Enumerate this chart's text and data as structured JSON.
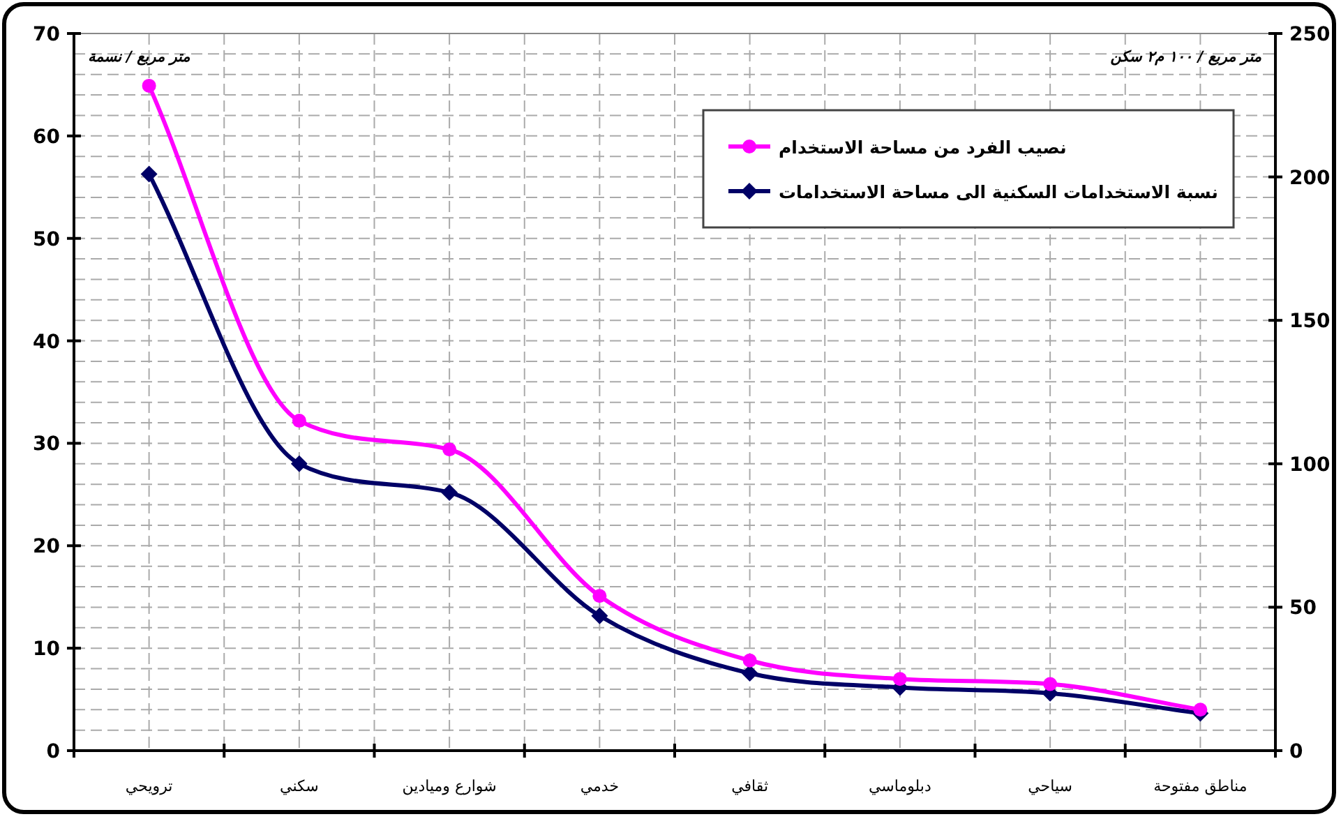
{
  "chart_data": {
    "type": "line",
    "categories": [
      "ترويحي",
      "سكني",
      "شوارع وميادين",
      "خدمي",
      "ثقافي",
      "دبلوماسي",
      "سياحي",
      "مناطق مفتوحة"
    ],
    "series": [
      {
        "name": "نصيب الفرد من مساحة الاستخدام",
        "color": "#ff00ff",
        "marker": "circle",
        "values": [
          64.9,
          32.2,
          29.4,
          15.1,
          8.8,
          7.0,
          6.5,
          4.0
        ]
      },
      {
        "name": "نسبة الاستخدامات السكنية الى مساحة الاستخدامات",
        "color": "#000066",
        "marker": "diamond",
        "axis": "y2",
        "values": [
          201,
          100,
          90,
          47,
          27,
          22,
          20,
          13
        ]
      }
    ],
    "ylabel": "متر مربع / نسمة",
    "y2label": "متر مربع / ١٠٠ م٢ سكن",
    "ylim": [
      0,
      70
    ],
    "yticks": [
      0,
      {
        "value": 2,
        "label": null
      },
      {
        "value": 4,
        "label": null
      },
      {
        "value": 6,
        "label": null
      },
      {
        "value": 8,
        "label": null
      },
      10,
      {
        "value": 12,
        "label": null
      },
      {
        "value": 14,
        "label": null
      },
      {
        "value": 16,
        "label": null
      },
      {
        "value": 18,
        "label": null
      },
      20,
      {
        "value": 22,
        "label": null
      },
      {
        "value": 24,
        "label": null
      },
      {
        "value": 26,
        "label": null
      },
      {
        "value": 28,
        "label": null
      },
      30,
      {
        "value": 32,
        "label": null
      },
      {
        "value": 34,
        "label": null
      },
      {
        "value": 36,
        "label": null
      },
      {
        "value": 38,
        "label": null
      },
      40,
      {
        "value": 42,
        "label": null
      },
      {
        "value": 44,
        "label": null
      },
      {
        "value": 46,
        "label": null
      },
      {
        "value": 48,
        "label": null
      },
      50,
      {
        "value": 52,
        "label": null
      },
      {
        "value": 54,
        "label": null
      },
      {
        "value": 56,
        "label": null
      },
      {
        "value": 58,
        "label": null
      },
      60,
      {
        "value": 62,
        "label": null
      },
      {
        "value": 64,
        "label": null
      },
      {
        "value": 66,
        "label": null
      },
      {
        "value": 68,
        "label": null
      },
      70
    ],
    "y2lim": [
      0,
      250
    ],
    "y2ticks": [
      0,
      50,
      100,
      150,
      200,
      250
    ],
    "grid": true,
    "legend": "top right",
    "line_style": "solid"
  }
}
